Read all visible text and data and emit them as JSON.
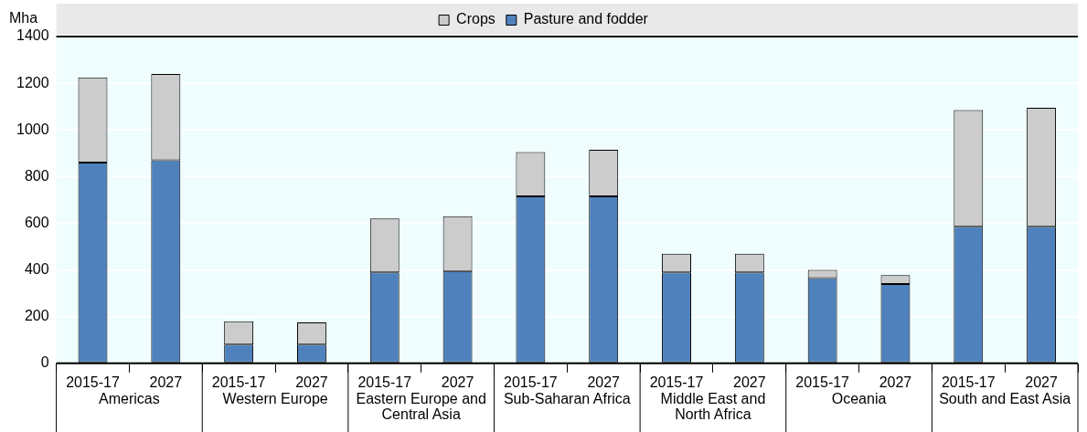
{
  "chart_data": {
    "type": "bar",
    "stacked": true,
    "ylabel": "Mha",
    "categories": [
      "2015-17",
      "2027",
      "2015-17",
      "2027",
      "2015-17",
      "2027",
      "2015-17",
      "2027",
      "2015-17",
      "2027",
      "2015-17",
      "2027",
      "2015-17",
      "2027"
    ],
    "annotations": [
      "Americas",
      "Western Europe",
      "Eastern Europe and Central Asia",
      "Sub-Saharan Africa",
      "Middle East and North Africa",
      "Oceania",
      "South and East Asia"
    ],
    "series": [
      {
        "name": "Pasture and fodder",
        "color": "#4f81bd",
        "values": [
          860,
          870,
          80,
          80,
          390,
          395,
          715,
          715,
          390,
          390,
          365,
          340,
          585,
          585
        ]
      },
      {
        "name": "Crops",
        "color": "#cccccc",
        "values": [
          365,
          370,
          100,
          95,
          230,
          235,
          190,
          200,
          80,
          80,
          35,
          38,
          500,
          510
        ]
      }
    ],
    "ylim": [
      0,
      1400
    ],
    "yticks": [
      0,
      200,
      400,
      600,
      800,
      1000,
      1200,
      1400
    ],
    "grid": "y",
    "legend": "top"
  }
}
